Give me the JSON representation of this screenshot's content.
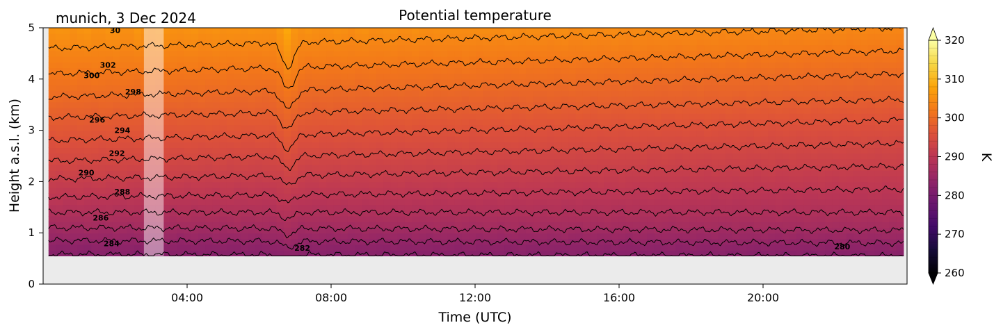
{
  "chart_data": {
    "type": "heatmap",
    "title": "Potential temperature",
    "subtitle": "munich, 3 Dec 2024",
    "xlabel": "Time (UTC)",
    "ylabel": "Height a.s.l. (km)",
    "xlim_hours": [
      0,
      24
    ],
    "ylim_km": [
      0,
      5
    ],
    "x_ticks": [
      {
        "hour": 4,
        "label": "04:00"
      },
      {
        "hour": 8,
        "label": "08:00"
      },
      {
        "hour": 12,
        "label": "12:00"
      },
      {
        "hour": 16,
        "label": "16:00"
      },
      {
        "hour": 20,
        "label": "20:00"
      }
    ],
    "y_ticks": [
      {
        "value": 0,
        "label": "0"
      },
      {
        "value": 1,
        "label": "1"
      },
      {
        "value": 2,
        "label": "2"
      },
      {
        "value": 3,
        "label": "3"
      },
      {
        "value": 4,
        "label": "4"
      },
      {
        "value": 5,
        "label": "5"
      }
    ],
    "data_extent": {
      "t_start": 0.15,
      "t_end": 23.9,
      "z_min_km": 0.55
    },
    "missing_data_band": {
      "t_start": 2.8,
      "t_end": 3.35
    },
    "trough_event": {
      "t": 6.8,
      "width_h": 0.55
    },
    "colormap": "inferno",
    "no_data_color": "#ebebeb",
    "colorbar": {
      "label": "K",
      "range": [
        260,
        320
      ],
      "ticks": [
        {
          "value": 260,
          "label": "260"
        },
        {
          "value": 270,
          "label": "270"
        },
        {
          "value": 280,
          "label": "280"
        },
        {
          "value": 290,
          "label": "290"
        },
        {
          "value": 300,
          "label": "300"
        },
        {
          "value": 310,
          "label": "310"
        },
        {
          "value": 320,
          "label": "320"
        }
      ],
      "extend": "both"
    },
    "contour_interval_K": 2,
    "contours": [
      {
        "level": 282,
        "z_start_km": 0.58,
        "z_end_km": 0.55
      },
      {
        "level": 284,
        "z_start_km": 0.85,
        "z_end_km": 0.8
      },
      {
        "level": 286,
        "z_start_km": 1.1,
        "z_end_km": 1.05
      },
      {
        "level": 288,
        "z_start_km": 1.4,
        "z_end_km": 1.4
      },
      {
        "level": 290,
        "z_start_km": 1.7,
        "z_end_km": 1.85
      },
      {
        "level": 292,
        "z_start_km": 2.05,
        "z_end_km": 2.3
      },
      {
        "level": 294,
        "z_start_km": 2.4,
        "z_end_km": 2.75
      },
      {
        "level": 296,
        "z_start_km": 2.8,
        "z_end_km": 3.2
      },
      {
        "level": 298,
        "z_start_km": 3.25,
        "z_end_km": 3.6
      },
      {
        "level": 300,
        "z_start_km": 3.65,
        "z_end_km": 4.1
      },
      {
        "level": 302,
        "z_start_km": 4.1,
        "z_end_km": 4.55
      },
      {
        "level": 304,
        "z_start_km": 4.6,
        "z_end_km": 5.0
      }
    ],
    "contour_labels": [
      {
        "text": "280",
        "t": 22.2,
        "z": 0.68
      },
      {
        "text": "282",
        "t": 7.2,
        "z": 0.65
      },
      {
        "text": "284",
        "t": 1.9,
        "z": 0.74
      },
      {
        "text": "286",
        "t": 1.6,
        "z": 1.24
      },
      {
        "text": "288",
        "t": 2.2,
        "z": 1.75
      },
      {
        "text": "290",
        "t": 1.2,
        "z": 2.12
      },
      {
        "text": "292",
        "t": 2.05,
        "z": 2.5
      },
      {
        "text": "294",
        "t": 2.2,
        "z": 2.95
      },
      {
        "text": "296",
        "t": 1.5,
        "z": 3.15
      },
      {
        "text": "298",
        "t": 2.5,
        "z": 3.7
      },
      {
        "text": "300",
        "t": 1.35,
        "z": 4.02
      },
      {
        "text": "302",
        "t": 1.8,
        "z": 4.22
      },
      {
        "text": "30",
        "t": 2.0,
        "z": 4.9
      }
    ]
  }
}
